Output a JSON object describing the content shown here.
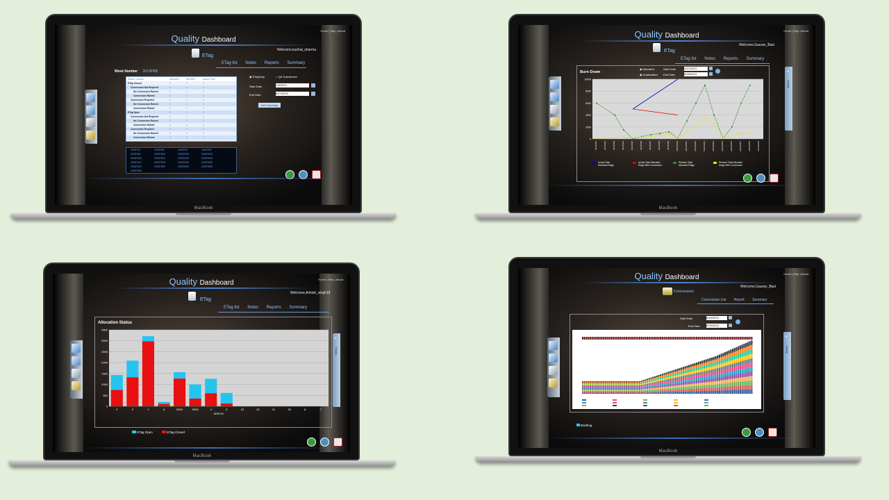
{
  "brand": "MacBook",
  "app": {
    "logo_quality": "Quality",
    "logo_dashboard": "Dashboard",
    "nav": [
      "Home",
      "Help",
      "About"
    ]
  },
  "screen1": {
    "welcome": "Welcome,kushal_sharma",
    "module": "ETag",
    "tabs": [
      "ETag list",
      "Notes",
      "Reports",
      "Summary"
    ],
    "week_label": "Week Number",
    "week_value": "2013FW5",
    "table_headers": [
      "Status / Quests",
      "Allocated",
      "Not With",
      "Issued Total"
    ],
    "table_rows": [
      {
        "label": "ETag Closed",
        "vals": [
          "0",
          "0",
          "0"
        ],
        "level": 0
      },
      {
        "label": "Concession Not Required",
        "vals": [
          "0",
          "0",
          "0"
        ],
        "level": 1
      },
      {
        "label": "No Concession Raised",
        "vals": [
          "0",
          "0",
          "0"
        ],
        "level": 2
      },
      {
        "label": "Concession Raised",
        "vals": [
          "0",
          "0",
          "0"
        ],
        "level": 2
      },
      {
        "label": "Concession Required",
        "vals": [
          "0",
          "0",
          "0"
        ],
        "level": 1
      },
      {
        "label": "No Concession Raised",
        "vals": [
          "0",
          "0",
          "0"
        ],
        "level": 2
      },
      {
        "label": "Concession Raised",
        "vals": [
          "0",
          "0",
          "0"
        ],
        "level": 2
      },
      {
        "label": "ETag Open",
        "vals": [
          "0",
          "0",
          "0"
        ],
        "level": 0
      },
      {
        "label": "Concession Not Required",
        "vals": [
          "0",
          "0",
          "0"
        ],
        "level": 1
      },
      {
        "label": "No Concession Raised",
        "vals": [
          "0",
          "0",
          "0"
        ],
        "level": 2
      },
      {
        "label": "Concession Raised",
        "vals": [
          "0",
          "0",
          "0"
        ],
        "level": 2
      },
      {
        "label": "Concession Required",
        "vals": [
          "0",
          "0",
          "0"
        ],
        "level": 1
      },
      {
        "label": "No Concession Raised",
        "vals": [
          "0",
          "0",
          "0"
        ],
        "level": 2
      },
      {
        "label": "Concession Raised",
        "vals": [
          "0",
          "0",
          "0"
        ],
        "level": 2
      }
    ],
    "radio1": "ETagOnly",
    "radio2": "QA Transferred",
    "start_label": "Start Date",
    "start_value": "2/3/2013",
    "end_label": "End Date",
    "end_value": "6/17/2013",
    "button": "Get Summary",
    "weeks": [
      [
        "2013FW1",
        "2013FW5",
        "2013FW7",
        "2013FW9"
      ],
      [
        "2013FW6",
        "2013FW10",
        "2013FW12",
        "2013FW13"
      ],
      [
        "2013FW11",
        "2013FW14",
        "2013FW15",
        "2013FW16"
      ],
      [
        "2013FW17",
        "2013FW18",
        "2013FW19",
        "2013FW20"
      ],
      [
        "2013FW21",
        "2013FW22",
        "2013FW23",
        "2013FW24"
      ],
      [
        "2013FW25",
        "",
        "",
        ""
      ]
    ]
  },
  "screen2": {
    "welcome": "Welcome,Gaurav_Basi",
    "module": "ETag",
    "tabs": [
      "ETag list",
      "Notes",
      "Reports",
      "Summary"
    ],
    "chart_title": "Burn Down",
    "radio1": "Allocated",
    "radio2": "Unallocated",
    "start_label": "Start Date",
    "start_value": "1/17/2013",
    "end_label": "End Date",
    "end_value": "6/18/2013",
    "select_label": "Select",
    "legend": [
      {
        "name": "Actual Total Allocated Etags",
        "color": "#0000cc"
      },
      {
        "name": "Actual Total Allocated Etags With Concession",
        "color": "#dd0000"
      },
      {
        "name": "Planned Total Allocated Etags",
        "color": "#2e8b2e"
      },
      {
        "name": "Planned Total Allocated Etags With Concession",
        "color": "#e6e600"
      }
    ]
  },
  "screen3": {
    "welcome": "Welcome,Ashish_singh18",
    "module": "ETag",
    "tabs": [
      "ETag list",
      "Notes",
      "Reports",
      "Summary"
    ],
    "chart_title": "Allocation Status",
    "select_label": "Select",
    "xlabel": "MSN ID",
    "legend": [
      {
        "name": "ETag Open",
        "color": "#25c4ef"
      },
      {
        "name": "ETag Closed",
        "color": "#e81010"
      }
    ]
  },
  "screen4": {
    "welcome": "Welcome,Gaurav_Basi",
    "module": "Concession",
    "tabs": [
      "Concession List",
      "Report",
      "Summary"
    ],
    "start_label": "Start Date",
    "start_value": "6/15/2013",
    "end_label": "End Date",
    "end_value": "6/15/2013",
    "backlog": "Backlog",
    "select_label": "Select"
  },
  "chart_data": [
    {
      "type": "line",
      "title": "Burn Down",
      "x": [
        "2013FW1",
        "2013FW2",
        "2013FW3",
        "2013FW4",
        "2013FW5",
        "2013FW6",
        "2013FW7",
        "2013FW8",
        "2013FW9",
        "2013FW10",
        "2013FW11",
        "2013FW12",
        "2013FW13",
        "2013FW14",
        "2013FW15",
        "2013FW16",
        "2013FW17",
        "2013FW18",
        "2013FW19"
      ],
      "ylim": [
        0,
        10000
      ],
      "yticks": [
        0,
        2000,
        4000,
        6000,
        8000,
        10000
      ],
      "series": [
        {
          "name": "Actual Total Allocated Etags",
          "color": "#0000cc",
          "values": [
            null,
            null,
            null,
            null,
            5000,
            null,
            null,
            null,
            null,
            10000,
            null,
            null,
            null,
            null,
            null,
            null,
            null,
            null,
            null
          ]
        },
        {
          "name": "Actual Total Allocated Etags With Concession",
          "color": "#dd0000",
          "values": [
            null,
            null,
            null,
            null,
            5000,
            null,
            null,
            null,
            null,
            4000,
            null,
            null,
            null,
            null,
            null,
            null,
            null,
            null,
            null
          ]
        },
        {
          "name": "Planned Total Allocated Etags",
          "color": "#2e8b2e",
          "values": [
            6000,
            null,
            4000,
            1500,
            0,
            400,
            700,
            900,
            1200,
            100,
            3000,
            6000,
            9000,
            4000,
            100,
            2000,
            6000,
            9000,
            null
          ]
        },
        {
          "name": "Planned Total Allocated Etags With Concession",
          "color": "#e6e600",
          "values": [
            100,
            null,
            200,
            300,
            200,
            300,
            400,
            600,
            800,
            100,
            1200,
            2000,
            3500,
            2500,
            100,
            600,
            900,
            1000,
            null
          ]
        }
      ]
    },
    {
      "type": "bar",
      "title": "Allocation Status",
      "xlabel": "MSN ID",
      "categories": [
        "2",
        "3",
        "1",
        "6",
        "5000",
        "5009",
        "4",
        "5",
        "19",
        "20",
        "21",
        "35",
        "8",
        "7"
      ],
      "ylim": [
        0,
        3500
      ],
      "yticks": [
        0,
        500,
        1000,
        1500,
        2000,
        2500,
        3000,
        3500
      ],
      "series": [
        {
          "name": "ETag Closed",
          "color": "#e81010",
          "values": [
            750,
            1330,
            2980,
            110,
            1270,
            350,
            600,
            130,
            0,
            0,
            0,
            0,
            0,
            0
          ]
        },
        {
          "name": "ETag Open",
          "color": "#25c4ef",
          "values": [
            680,
            760,
            230,
            90,
            290,
            650,
            660,
            480,
            0,
            0,
            0,
            0,
            0,
            0
          ]
        }
      ]
    }
  ]
}
